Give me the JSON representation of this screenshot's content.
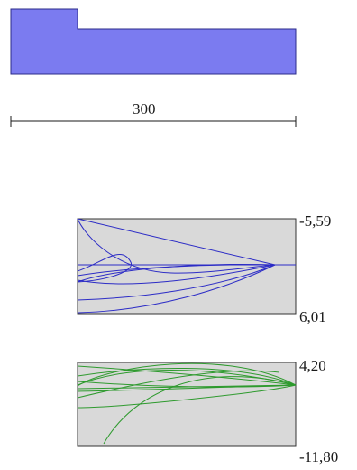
{
  "section": {
    "shape": "stepped-rectangle",
    "fill_color": "#7b7bf0",
    "stroke_color": "#2b2b8a"
  },
  "dimension": {
    "label": "300"
  },
  "top_plot": {
    "max_label": "-5,59",
    "min_label": "6,01",
    "line_color": "#2c2cc6",
    "background": "#d9d9d9"
  },
  "bottom_plot": {
    "max_label": "4,20",
    "min_label": "-11,80",
    "line_color": "#2e9a2e",
    "background": "#d9d9d9"
  }
}
